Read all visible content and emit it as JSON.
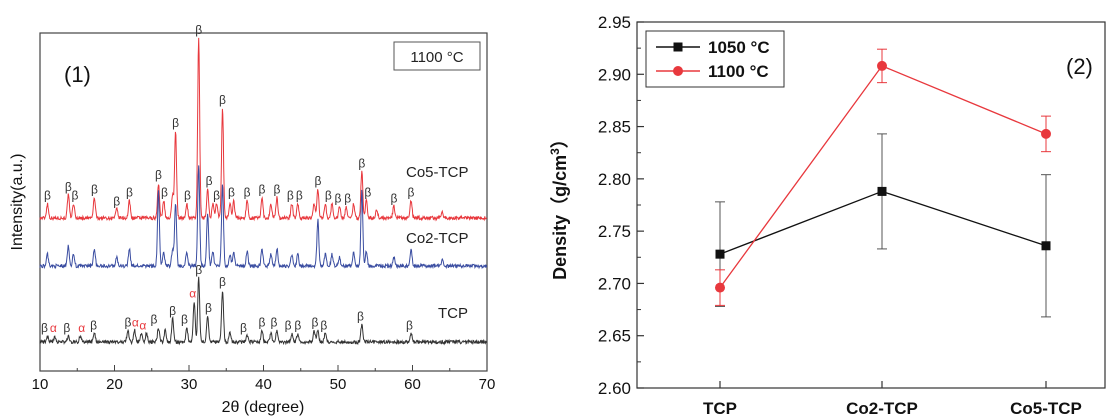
{
  "panel_labels": {
    "left": "(1)",
    "right": "(2)"
  },
  "chart_data": [
    {
      "type": "line",
      "panel": "(1)",
      "annotation": "1100 °C",
      "xlabel": "2θ (degree)",
      "ylabel": "Intensity(a.u.)",
      "xlim": [
        10,
        70
      ],
      "x_ticks": [
        10,
        20,
        30,
        40,
        50,
        60,
        70
      ],
      "y_ticks_shown": false,
      "legend": "none",
      "colors": {
        "Co5-TCP": "#e8383d",
        "Co2-TCP": "#3a4da1",
        "TCP": "#333333",
        "alpha": "#e8383d",
        "beta": "#333333"
      },
      "series": [
        {
          "name": "Co5-TCP",
          "baseline": 0.53,
          "peaks": [
            [
              11.0,
              0.05
            ],
            [
              13.8,
              0.08
            ],
            [
              14.5,
              0.05
            ],
            [
              17.3,
              0.07
            ],
            [
              20.3,
              0.03
            ],
            [
              22.0,
              0.06
            ],
            [
              25.9,
              0.12
            ],
            [
              26.6,
              0.06
            ],
            [
              27.8,
              0.08
            ],
            [
              28.2,
              0.3
            ],
            [
              29.7,
              0.05
            ],
            [
              31.3,
              0.62
            ],
            [
              32.5,
              0.1
            ],
            [
              33.2,
              0.05
            ],
            [
              33.7,
              0.05
            ],
            [
              34.5,
              0.38
            ],
            [
              35.5,
              0.05
            ],
            [
              36.0,
              0.06
            ],
            [
              37.8,
              0.06
            ],
            [
              39.8,
              0.07
            ],
            [
              41.0,
              0.05
            ],
            [
              41.8,
              0.07
            ],
            [
              43.8,
              0.05
            ],
            [
              44.6,
              0.05
            ],
            [
              46.8,
              0.05
            ],
            [
              47.3,
              0.1
            ],
            [
              48.3,
              0.05
            ],
            [
              49.2,
              0.05
            ],
            [
              50.2,
              0.04
            ],
            [
              51.1,
              0.04
            ],
            [
              52.1,
              0.05
            ],
            [
              53.2,
              0.16
            ],
            [
              53.8,
              0.06
            ],
            [
              55.2,
              0.03
            ],
            [
              57.5,
              0.04
            ],
            [
              59.8,
              0.06
            ],
            [
              64.0,
              0.02
            ]
          ],
          "peak_labels": [
            {
              "x": 11.0,
              "t": "β"
            },
            {
              "x": 13.8,
              "t": "β"
            },
            {
              "x": 14.7,
              "t": "β"
            },
            {
              "x": 17.3,
              "t": "β"
            },
            {
              "x": 20.3,
              "t": "β"
            },
            {
              "x": 22.0,
              "t": "β"
            },
            {
              "x": 25.9,
              "t": "β"
            },
            {
              "x": 26.7,
              "t": "β"
            },
            {
              "x": 28.2,
              "t": "β"
            },
            {
              "x": 29.8,
              "t": "β"
            },
            {
              "x": 31.3,
              "t": "β"
            },
            {
              "x": 32.7,
              "t": "β"
            },
            {
              "x": 33.7,
              "t": "β"
            },
            {
              "x": 34.5,
              "t": "β"
            },
            {
              "x": 35.7,
              "t": "β"
            },
            {
              "x": 37.8,
              "t": "β"
            },
            {
              "x": 39.8,
              "t": "β"
            },
            {
              "x": 41.8,
              "t": "β"
            },
            {
              "x": 43.6,
              "t": "β"
            },
            {
              "x": 44.8,
              "t": "β"
            },
            {
              "x": 47.3,
              "t": "β"
            },
            {
              "x": 48.7,
              "t": "β"
            },
            {
              "x": 50.0,
              "t": "β"
            },
            {
              "x": 51.3,
              "t": "β"
            },
            {
              "x": 53.2,
              "t": "β"
            },
            {
              "x": 54.0,
              "t": "β"
            },
            {
              "x": 57.5,
              "t": "β"
            },
            {
              "x": 59.8,
              "t": "β"
            }
          ]
        },
        {
          "name": "Co2-TCP",
          "baseline": 0.35,
          "peaks": [
            [
              11.0,
              0.04
            ],
            [
              13.8,
              0.07
            ],
            [
              14.5,
              0.04
            ],
            [
              17.3,
              0.06
            ],
            [
              20.3,
              0.03
            ],
            [
              22.0,
              0.06
            ],
            [
              25.9,
              0.26
            ],
            [
              26.6,
              0.05
            ],
            [
              27.8,
              0.06
            ],
            [
              28.2,
              0.22
            ],
            [
              29.7,
              0.05
            ],
            [
              31.3,
              0.35
            ],
            [
              32.5,
              0.18
            ],
            [
              33.2,
              0.05
            ],
            [
              34.5,
              0.28
            ],
            [
              35.5,
              0.04
            ],
            [
              36.0,
              0.05
            ],
            [
              37.8,
              0.05
            ],
            [
              39.8,
              0.06
            ],
            [
              41.0,
              0.04
            ],
            [
              41.8,
              0.06
            ],
            [
              43.8,
              0.04
            ],
            [
              44.6,
              0.04
            ],
            [
              47.3,
              0.16
            ],
            [
              48.3,
              0.04
            ],
            [
              49.2,
              0.04
            ],
            [
              50.2,
              0.03
            ],
            [
              52.1,
              0.05
            ],
            [
              53.2,
              0.26
            ],
            [
              53.8,
              0.05
            ],
            [
              57.5,
              0.03
            ],
            [
              59.8,
              0.06
            ],
            [
              64.0,
              0.02
            ]
          ],
          "peak_labels": []
        },
        {
          "name": "TCP",
          "baseline": 0.0,
          "peaks": [
            [
              11.0,
              0.02
            ],
            [
              12.0,
              0.02
            ],
            [
              13.8,
              0.02
            ],
            [
              15.4,
              0.02
            ],
            [
              17.3,
              0.03
            ],
            [
              21.8,
              0.04
            ],
            [
              22.7,
              0.04
            ],
            [
              23.6,
              0.03
            ],
            [
              24.3,
              0.03
            ],
            [
              25.9,
              0.05
            ],
            [
              26.8,
              0.04
            ],
            [
              27.8,
              0.08
            ],
            [
              29.7,
              0.05
            ],
            [
              30.7,
              0.14
            ],
            [
              31.3,
              0.22
            ],
            [
              32.5,
              0.09
            ],
            [
              34.5,
              0.18
            ],
            [
              35.5,
              0.03
            ],
            [
              37.8,
              0.02
            ],
            [
              39.8,
              0.04
            ],
            [
              41.0,
              0.03
            ],
            [
              41.8,
              0.04
            ],
            [
              43.8,
              0.03
            ],
            [
              44.6,
              0.03
            ],
            [
              46.8,
              0.04
            ],
            [
              47.3,
              0.04
            ],
            [
              48.3,
              0.03
            ],
            [
              53.2,
              0.06
            ],
            [
              59.8,
              0.03
            ]
          ],
          "peak_labels": [
            {
              "x": 10.6,
              "t": "β",
              "c": "beta"
            },
            {
              "x": 11.8,
              "t": "α",
              "c": "alpha"
            },
            {
              "x": 13.6,
              "t": "β",
              "c": "beta"
            },
            {
              "x": 15.6,
              "t": "α",
              "c": "alpha"
            },
            {
              "x": 17.2,
              "t": "β",
              "c": "beta"
            },
            {
              "x": 21.8,
              "t": "β",
              "c": "beta"
            },
            {
              "x": 22.8,
              "t": "α",
              "c": "alpha"
            },
            {
              "x": 23.8,
              "t": "α",
              "c": "alpha"
            },
            {
              "x": 25.3,
              "t": "β",
              "c": "beta"
            },
            {
              "x": 27.8,
              "t": "β",
              "c": "beta"
            },
            {
              "x": 29.4,
              "t": "β",
              "c": "beta"
            },
            {
              "x": 30.5,
              "t": "α",
              "c": "alpha"
            },
            {
              "x": 31.3,
              "t": "β",
              "c": "beta"
            },
            {
              "x": 32.6,
              "t": "β",
              "c": "beta"
            },
            {
              "x": 34.5,
              "t": "β",
              "c": "beta"
            },
            {
              "x": 37.3,
              "t": "β",
              "c": "beta"
            },
            {
              "x": 39.8,
              "t": "β",
              "c": "beta"
            },
            {
              "x": 41.4,
              "t": "β",
              "c": "beta"
            },
            {
              "x": 43.3,
              "t": "β",
              "c": "beta"
            },
            {
              "x": 44.6,
              "t": "β",
              "c": "beta"
            },
            {
              "x": 46.9,
              "t": "β",
              "c": "beta"
            },
            {
              "x": 48.1,
              "t": "β",
              "c": "beta"
            },
            {
              "x": 53.0,
              "t": "β",
              "c": "beta"
            },
            {
              "x": 59.6,
              "t": "β",
              "c": "beta"
            }
          ]
        }
      ]
    },
    {
      "type": "line",
      "panel": "(2)",
      "xlabel": "",
      "ylabel": "Density（g/cm3）",
      "categories": [
        "TCP",
        "Co2-TCP",
        "Co5-TCP"
      ],
      "ylim": [
        2.6,
        2.95
      ],
      "y_ticks": [
        "2.60",
        "2.65",
        "2.70",
        "2.75",
        "2.80",
        "2.85",
        "2.90",
        "2.95"
      ],
      "legend": "top-left",
      "series": [
        {
          "name": "1050 °C",
          "color": "#111111",
          "marker": "square",
          "values": [
            2.728,
            2.788,
            2.736
          ],
          "error": [
            0.05,
            0.055,
            0.068
          ]
        },
        {
          "name": "1100 °C",
          "color": "#e8383d",
          "marker": "circle",
          "values": [
            2.696,
            2.908,
            2.843
          ],
          "error": [
            0.017,
            0.016,
            0.017
          ]
        }
      ]
    }
  ]
}
